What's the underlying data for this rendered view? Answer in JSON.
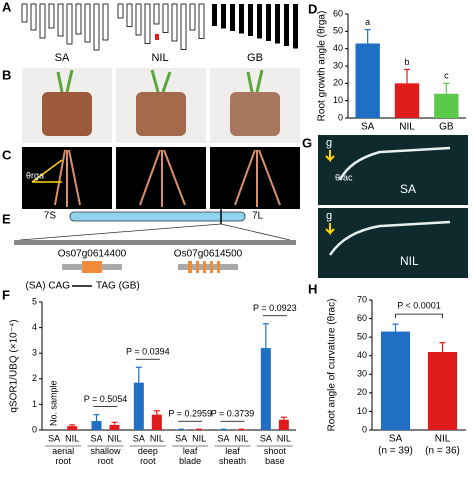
{
  "figure": {
    "panel_letters": [
      "A",
      "B",
      "C",
      "D",
      "E",
      "F",
      "G",
      "H"
    ],
    "a_labels": [
      "SA",
      "NIL",
      "GB"
    ],
    "c_label": "θrga",
    "e_labels": {
      "left_arm": "7S",
      "right_arm": "7L",
      "gene1": "Os07g0614400",
      "gene2": "Os07g0614500",
      "mutation_from": "(SA) CAG",
      "mutation_to": "TAG (GB)"
    },
    "g_labels": {
      "gravity_top": "g",
      "gravity_bottom": "g",
      "angle": "θrac",
      "top_line": "SA",
      "bottom_line": "NIL"
    }
  },
  "chart_data": [
    {
      "type": "bar",
      "ylabel": "Root growth angle (θrga)",
      "categories": [
        "SA",
        "NIL",
        "GB"
      ],
      "values": [
        43,
        20,
        14
      ],
      "errors": [
        8,
        8,
        6
      ],
      "colors": [
        "#1f6fc5",
        "#e01b1b",
        "#5dc94a"
      ],
      "annotations": [
        "a",
        "b",
        "c"
      ],
      "ylim": [
        0,
        60
      ],
      "yticks": [
        0,
        10,
        20,
        30,
        40,
        50,
        60
      ]
    },
    {
      "type": "bar",
      "ylabel": "qSOR1/UBQ (×10⁻⁴)",
      "categories": [
        "aerial root",
        "shallow root",
        "deep root",
        "leaf blade",
        "leaf sheath",
        "shoot base"
      ],
      "series": [
        {
          "name": "SA",
          "color": "#1f6fc5",
          "values": [
            null,
            0.35,
            1.85,
            0.02,
            0.02,
            3.2
          ],
          "errors": [
            null,
            0.25,
            0.6,
            0.01,
            0.01,
            0.95
          ]
        },
        {
          "name": "NIL",
          "color": "#e01b1b",
          "values": [
            0.15,
            0.2,
            0.6,
            0.02,
            0.02,
            0.4
          ],
          "errors": [
            0.05,
            0.1,
            0.15,
            0.01,
            0.01,
            0.1
          ]
        }
      ],
      "note": "No. sample",
      "p_values": [
        null,
        "P = 0.5054",
        "P = 0.0394",
        "P = 0.2959",
        "P = 0.3739",
        "P = 0.0923"
      ],
      "ylim": [
        0,
        5
      ],
      "yticks": [
        0,
        1,
        2,
        3,
        4,
        5
      ]
    },
    {
      "type": "bar",
      "ylabel": "Root angle of curvature (θrac)",
      "categories": [
        "SA",
        "NIL"
      ],
      "category_notes": [
        "(n = 39)",
        "(n = 36)"
      ],
      "values": [
        53,
        42
      ],
      "errors": [
        4,
        5
      ],
      "colors": [
        "#1f6fc5",
        "#e01b1b"
      ],
      "p_value": "P < 0.0001",
      "ylim": [
        0,
        70
      ],
      "yticks": [
        0,
        10,
        20,
        30,
        40,
        50,
        60,
        70
      ]
    }
  ]
}
